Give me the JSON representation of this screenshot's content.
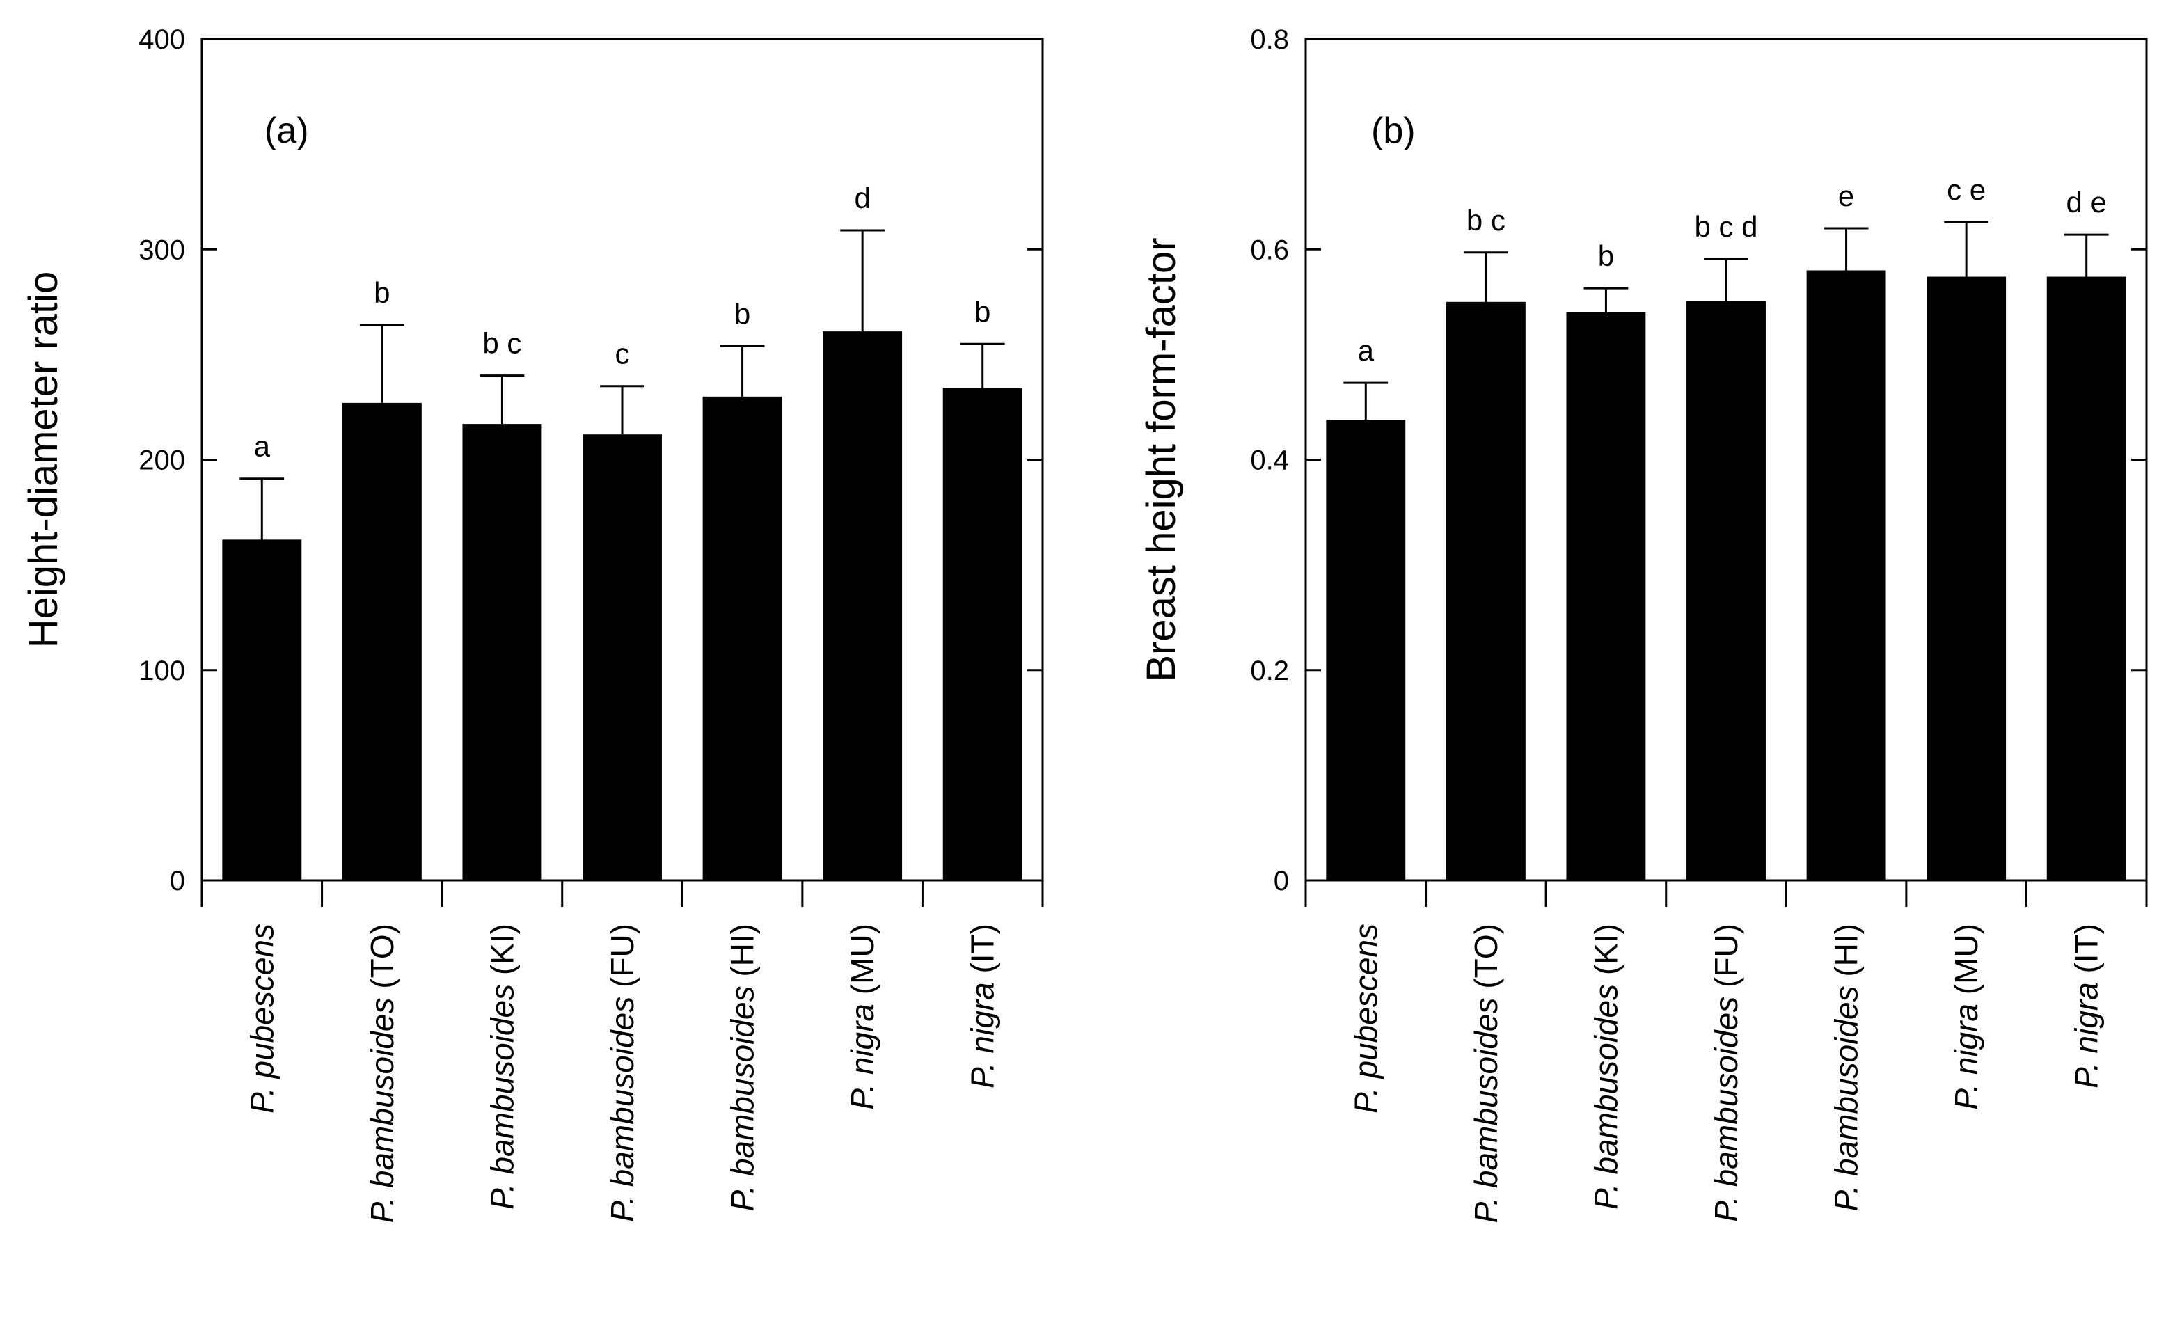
{
  "chart_data": [
    {
      "type": "bar",
      "panel_label": "(a)",
      "ylabel": "Height-diameter ratio",
      "xlabel": "",
      "ylim": [
        0,
        400
      ],
      "yticks": [
        0,
        100,
        200,
        300,
        400
      ],
      "ytick_labels": [
        "0",
        "100",
        "200",
        "300",
        "400"
      ],
      "categories": [
        {
          "species": "P. pubescens",
          "site": ""
        },
        {
          "species": "P. bambusoides",
          "site": "(TO)"
        },
        {
          "species": "P. bambusoides",
          "site": "(KI)"
        },
        {
          "species": "P. bambusoides",
          "site": "(FU)"
        },
        {
          "species": "P. bambusoides",
          "site": "(HI)"
        },
        {
          "species": "P. nigra",
          "site": "(MU)"
        },
        {
          "species": "P. nigra",
          "site": "(IT)"
        }
      ],
      "values": [
        162,
        227,
        217,
        212,
        230,
        261,
        234
      ],
      "errors": [
        29,
        37,
        23,
        23,
        24,
        48,
        21
      ],
      "significance": [
        "a",
        "b",
        "b c",
        "c",
        "b",
        "d",
        "b"
      ]
    },
    {
      "type": "bar",
      "panel_label": "(b)",
      "ylabel": "Breast height form-factor",
      "xlabel": "",
      "ylim": [
        0,
        0.8
      ],
      "yticks": [
        0,
        0.2,
        0.4,
        0.6,
        0.8
      ],
      "ytick_labels": [
        "0",
        "0.2",
        "0.4",
        "0.6",
        "0.8"
      ],
      "categories": [
        {
          "species": "P. pubescens",
          "site": ""
        },
        {
          "species": "P. bambusoides",
          "site": "(TO)"
        },
        {
          "species": "P. bambusoides",
          "site": "(KI)"
        },
        {
          "species": "P. bambusoides",
          "site": "(FU)"
        },
        {
          "species": "P. bambusoides",
          "site": "(HI)"
        },
        {
          "species": "P. nigra",
          "site": "(MU)"
        },
        {
          "species": "P. nigra",
          "site": "(IT)"
        }
      ],
      "values": [
        0.438,
        0.55,
        0.54,
        0.551,
        0.58,
        0.574,
        0.574
      ],
      "errors": [
        0.035,
        0.047,
        0.023,
        0.04,
        0.04,
        0.052,
        0.04
      ],
      "significance": [
        "a",
        "b c",
        "b",
        "b c d",
        "e",
        "c e",
        "d e"
      ]
    }
  ]
}
